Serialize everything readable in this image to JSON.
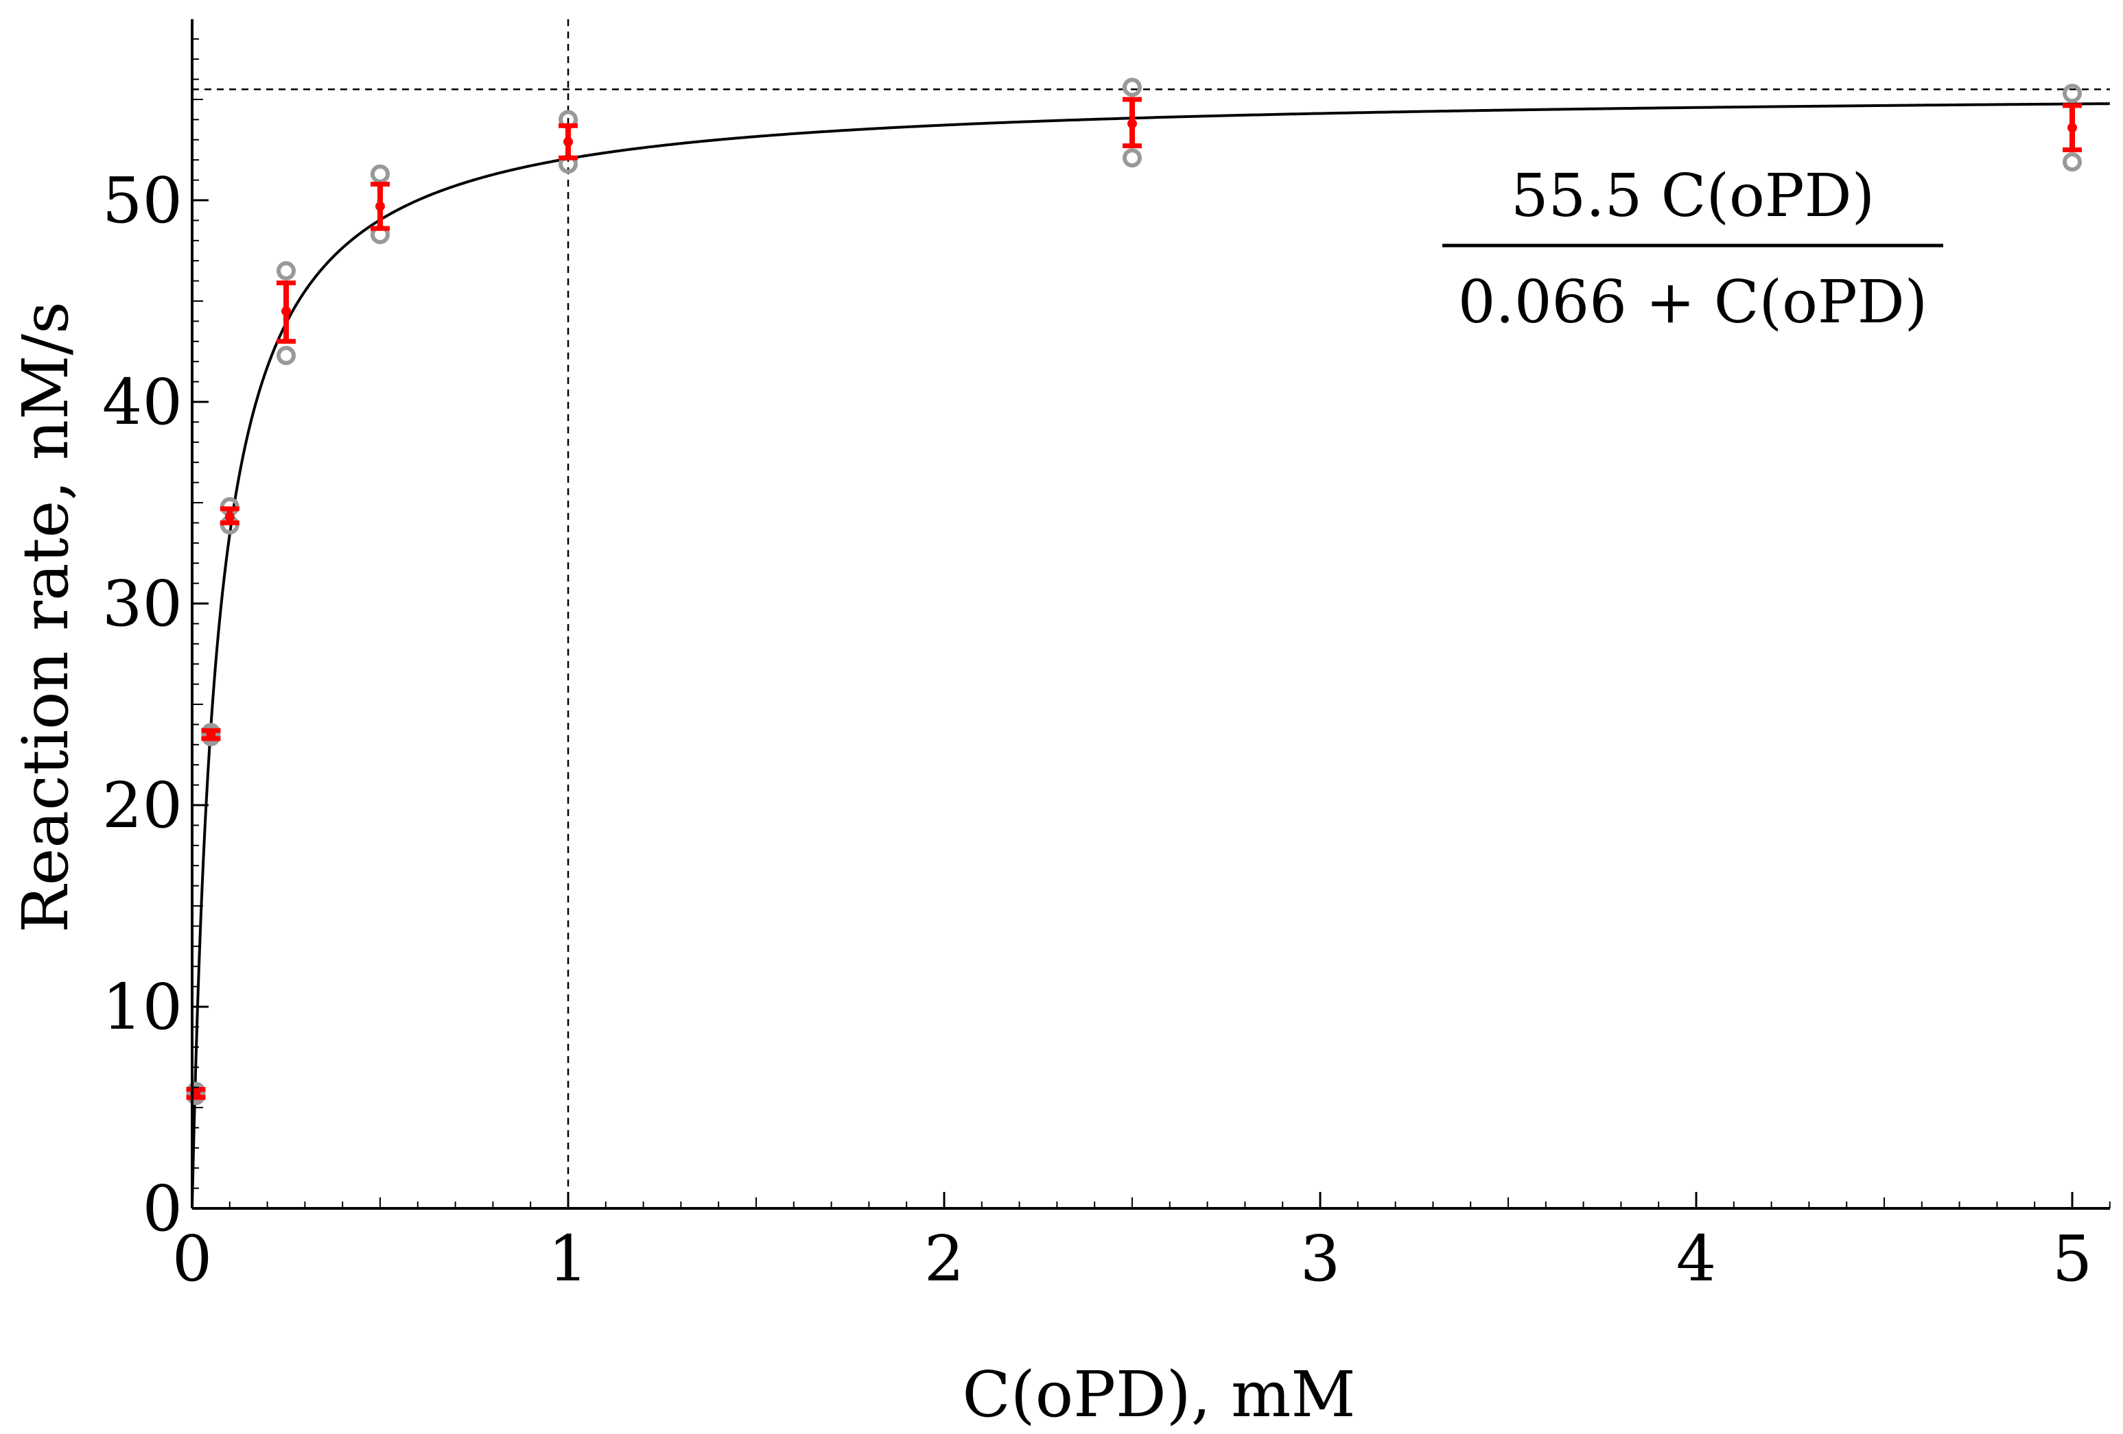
{
  "chart_data": {
    "type": "scatter",
    "title": "",
    "xlabel": "C(oPD), mM",
    "ylabel": "Reaction rate, nM/s",
    "xlim": [
      0,
      5.1
    ],
    "ylim": [
      0,
      59
    ],
    "x_ticks": [
      0,
      1,
      2,
      3,
      4,
      5
    ],
    "y_ticks": [
      0,
      10,
      20,
      30,
      40,
      50
    ],
    "x_tick_labels": [
      "0",
      "1",
      "2",
      "3",
      "4",
      "5"
    ],
    "y_tick_labels": [
      "0",
      "10",
      "20",
      "30",
      "40",
      "50"
    ],
    "grid": false,
    "fit": {
      "model": "michaelis-menten",
      "vmax": 55.5,
      "km": 0.066,
      "label_numerator": "55.5 C(oPD)",
      "label_denominator": "0.066 + C(oPD)",
      "label_position": "top-right"
    },
    "reference_lines": {
      "x": 1,
      "y": 55.5
    },
    "replicates": [
      {
        "x": 0.01,
        "values": [
          5.8,
          5.6
        ]
      },
      {
        "x": 0.05,
        "values": [
          23.6,
          23.4
        ]
      },
      {
        "x": 0.1,
        "values": [
          34.8,
          33.9
        ]
      },
      {
        "x": 0.25,
        "values": [
          46.5,
          42.3
        ]
      },
      {
        "x": 0.5,
        "values": [
          51.3,
          48.3
        ]
      },
      {
        "x": 1,
        "values": [
          54.0,
          51.8
        ]
      },
      {
        "x": 2.5,
        "values": [
          55.6,
          52.1
        ]
      },
      {
        "x": 5,
        "values": [
          55.3,
          51.9
        ]
      }
    ],
    "error_bars": [
      {
        "x": 0.01,
        "mean": 5.7,
        "low": 5.5,
        "high": 5.9
      },
      {
        "x": 0.05,
        "mean": 23.5,
        "low": 23.3,
        "high": 23.7
      },
      {
        "x": 0.1,
        "mean": 34.3,
        "low": 34.0,
        "high": 34.7
      },
      {
        "x": 0.25,
        "mean": 44.5,
        "low": 43.0,
        "high": 45.9
      },
      {
        "x": 0.5,
        "mean": 49.7,
        "low": 48.6,
        "high": 50.8
      },
      {
        "x": 1,
        "mean": 52.9,
        "low": 52.1,
        "high": 53.7
      },
      {
        "x": 2.5,
        "mean": 53.8,
        "low": 52.7,
        "high": 55.0
      },
      {
        "x": 5,
        "mean": 53.6,
        "low": 52.5,
        "high": 54.7
      }
    ],
    "colors": {
      "fit_line": "#000000",
      "replicate_points": "#999999",
      "error_bars": "#ff0000",
      "reference_lines": "#000000"
    }
  }
}
